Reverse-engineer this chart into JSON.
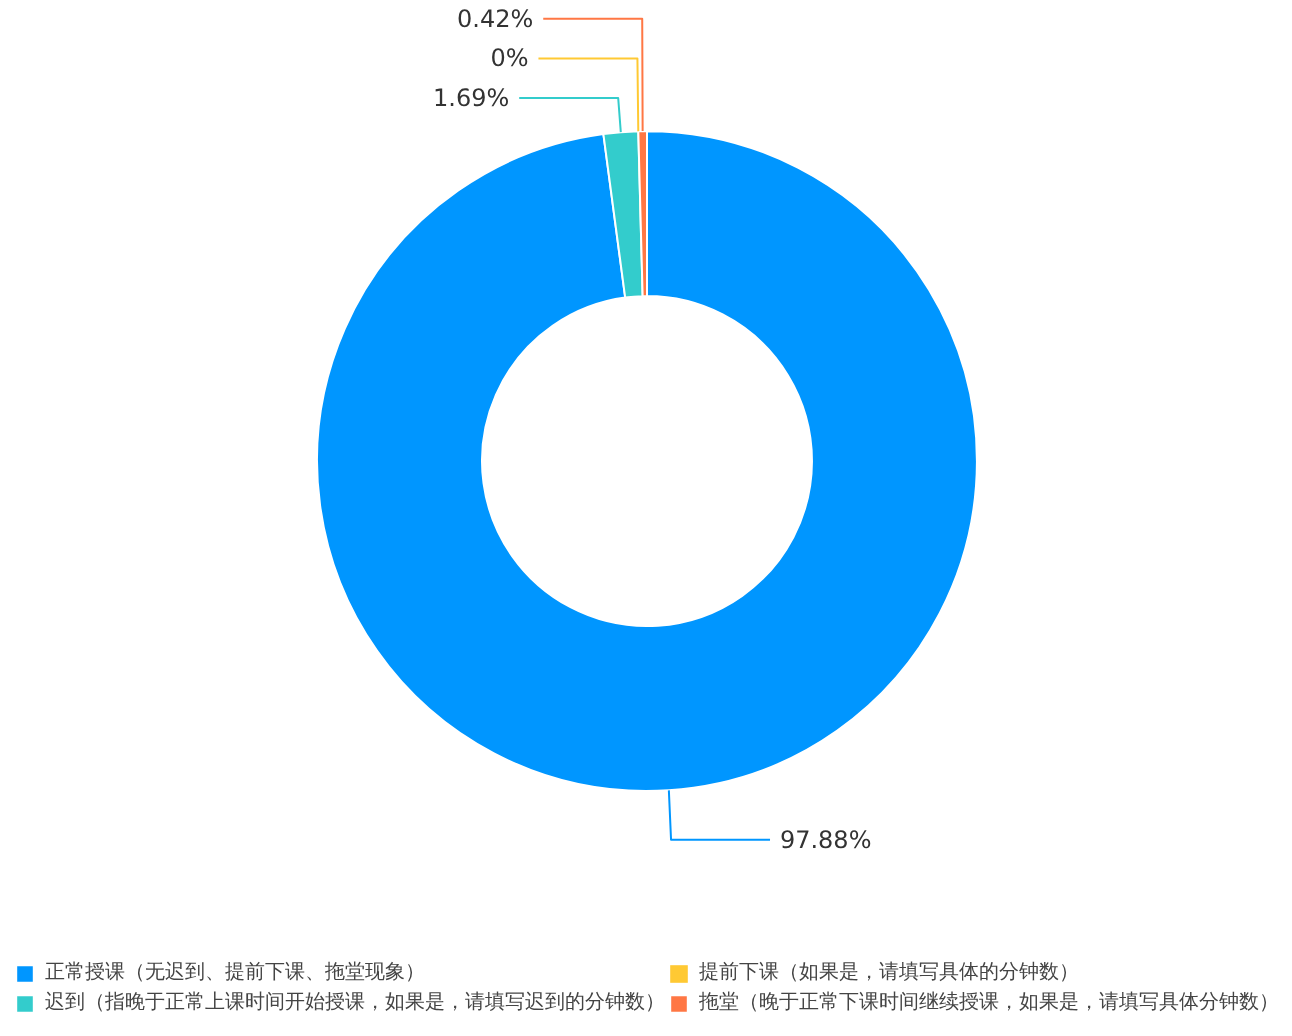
{
  "chart_data": {
    "type": "donut",
    "categories": [
      "正常授课（无迟到、提前下课、拖堂现象）",
      "迟到（指晚于正常上课时间开始授课，如果是，请填写迟到的分钟数）",
      "提前下课（如果是，请填写具体的分钟数）",
      "拖堂（晚于正常下课时间继续授课，如果是，请填写具体分钟数）"
    ],
    "values": [
      97.88,
      1.69,
      0,
      0.42
    ],
    "value_labels": [
      "97.88%",
      "1.69%",
      "0%",
      "0.42%"
    ],
    "colors": [
      "#0096ff",
      "#33cccc",
      "#ffc933",
      "#ff7744"
    ],
    "legend": "bottom"
  }
}
